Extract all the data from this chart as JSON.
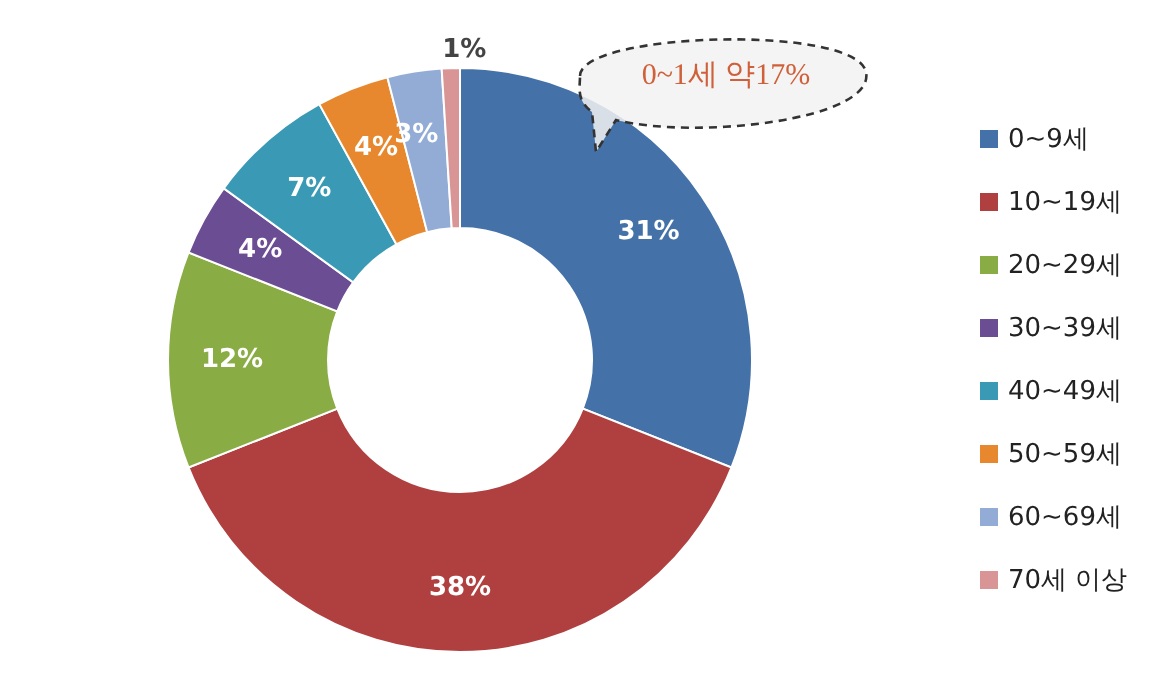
{
  "chart_data": {
    "type": "donut",
    "categories": [
      "0~9세",
      "10~19세",
      "20~29세",
      "30~39세",
      "40~49세",
      "50~59세",
      "60~69세",
      "70세 이상"
    ],
    "values": [
      31,
      38,
      12,
      4,
      7,
      4,
      3,
      1
    ],
    "colors": [
      "#4472a8",
      "#b04040",
      "#8aac45",
      "#6b4d94",
      "#3a9ab5",
      "#e8882e",
      "#93acd6",
      "#d99595"
    ],
    "value_labels": [
      "31%",
      "38%",
      "12%",
      "4%",
      "7%",
      "4%",
      "3%",
      "1%"
    ],
    "annotations": [
      "0~1세 약17%"
    ],
    "legend": "right"
  }
}
